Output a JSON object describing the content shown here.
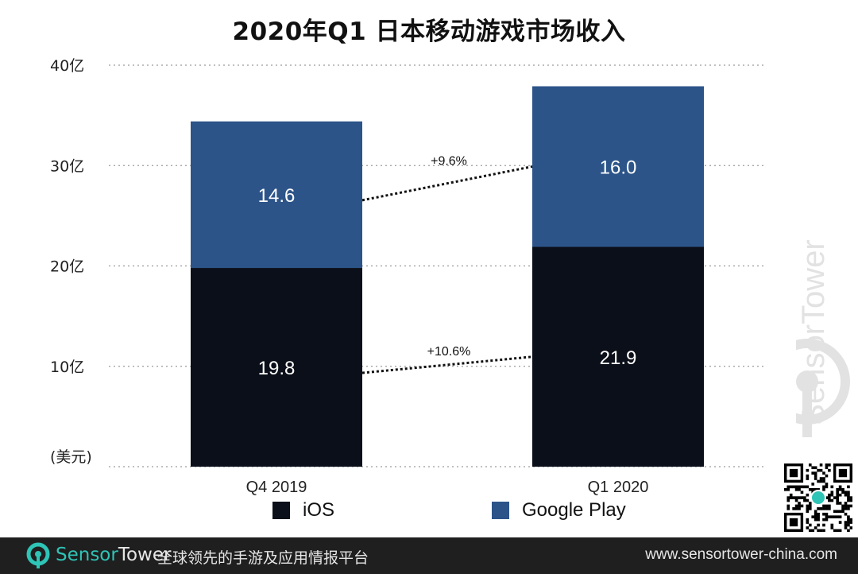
{
  "chart_data": {
    "type": "bar",
    "stacked": true,
    "title": "2020年Q1 日本移动游戏市场收入",
    "unit_label": "(美元)",
    "ylim": [
      0,
      40
    ],
    "yticks": [
      {
        "value": 10,
        "label": "10亿"
      },
      {
        "value": 20,
        "label": "20亿"
      },
      {
        "value": 30,
        "label": "30亿"
      },
      {
        "value": 40,
        "label": "40亿"
      }
    ],
    "categories": [
      "Q4  2019",
      "Q1 2020"
    ],
    "series": [
      {
        "name": "iOS",
        "color": "#0b0f19",
        "values": [
          19.8,
          21.9
        ],
        "labels": [
          "19.8",
          "21.9"
        ]
      },
      {
        "name": "Google Play",
        "color": "#2c5489",
        "values": [
          14.6,
          16.0
        ],
        "labels": [
          "14.6",
          "16.0"
        ]
      }
    ],
    "growth": [
      {
        "series": "Google Play",
        "label": "+9.6%"
      },
      {
        "series": "iOS",
        "label": "+10.6%"
      }
    ],
    "legend_position": "bottom"
  },
  "watermark": {
    "text": "SensorTower"
  },
  "footer": {
    "brand_part1": "Sensor",
    "brand_part2": "Tower",
    "slogan": "全球领先的手游及应用情报平台",
    "url": "www.sensortower-china.com"
  }
}
